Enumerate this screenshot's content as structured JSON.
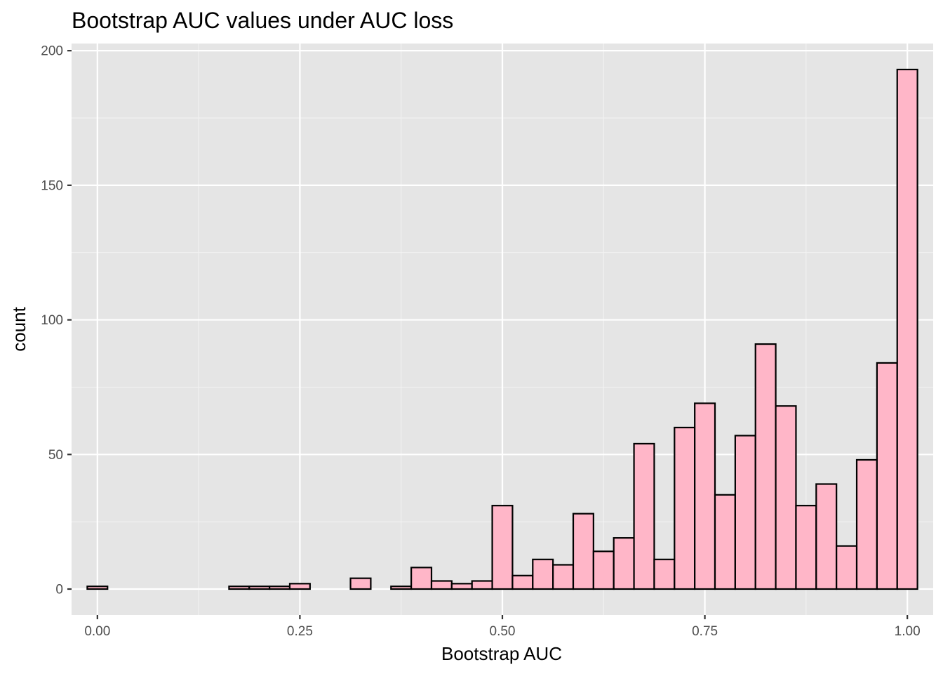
{
  "chart_data": {
    "type": "bar",
    "title": "Bootstrap AUC values under AUC loss",
    "xlabel": "Bootstrap AUC",
    "ylabel": "count",
    "xlim": [
      -0.0319,
      1.0319
    ],
    "ylim": [
      -9.65,
      202.65
    ],
    "x_ticks": [
      0.0,
      0.25,
      0.5,
      0.75,
      1.0
    ],
    "x_tick_labels": [
      "0.00",
      "0.25",
      "0.50",
      "0.75",
      "1.00"
    ],
    "y_ticks": [
      0,
      50,
      100,
      150,
      200
    ],
    "y_tick_labels": [
      "0",
      "50",
      "100",
      "150",
      "200"
    ],
    "grid": true,
    "legend": "none",
    "bar_fill": "#ffb6c8",
    "bar_outline": "#000000",
    "panel_background": "#e5e5e5",
    "bin_width": 0.025,
    "bin_centers": [
      0.0,
      0.025,
      0.05,
      0.075,
      0.1,
      0.125,
      0.15,
      0.175,
      0.2,
      0.225,
      0.25,
      0.275,
      0.3,
      0.325,
      0.35,
      0.375,
      0.4,
      0.425,
      0.45,
      0.475,
      0.5,
      0.525,
      0.55,
      0.575,
      0.6,
      0.625,
      0.65,
      0.675,
      0.7,
      0.725,
      0.75,
      0.775,
      0.8,
      0.825,
      0.85,
      0.875,
      0.9,
      0.925,
      0.95,
      0.975,
      1.0
    ],
    "values": [
      1,
      0,
      0,
      0,
      0,
      0,
      0,
      1,
      1,
      1,
      2,
      0,
      0,
      4,
      0,
      1,
      8,
      3,
      2,
      3,
      31,
      5,
      11,
      9,
      28,
      14,
      19,
      54,
      11,
      60,
      69,
      35,
      57,
      91,
      68,
      31,
      39,
      16,
      48,
      84,
      193
    ]
  }
}
